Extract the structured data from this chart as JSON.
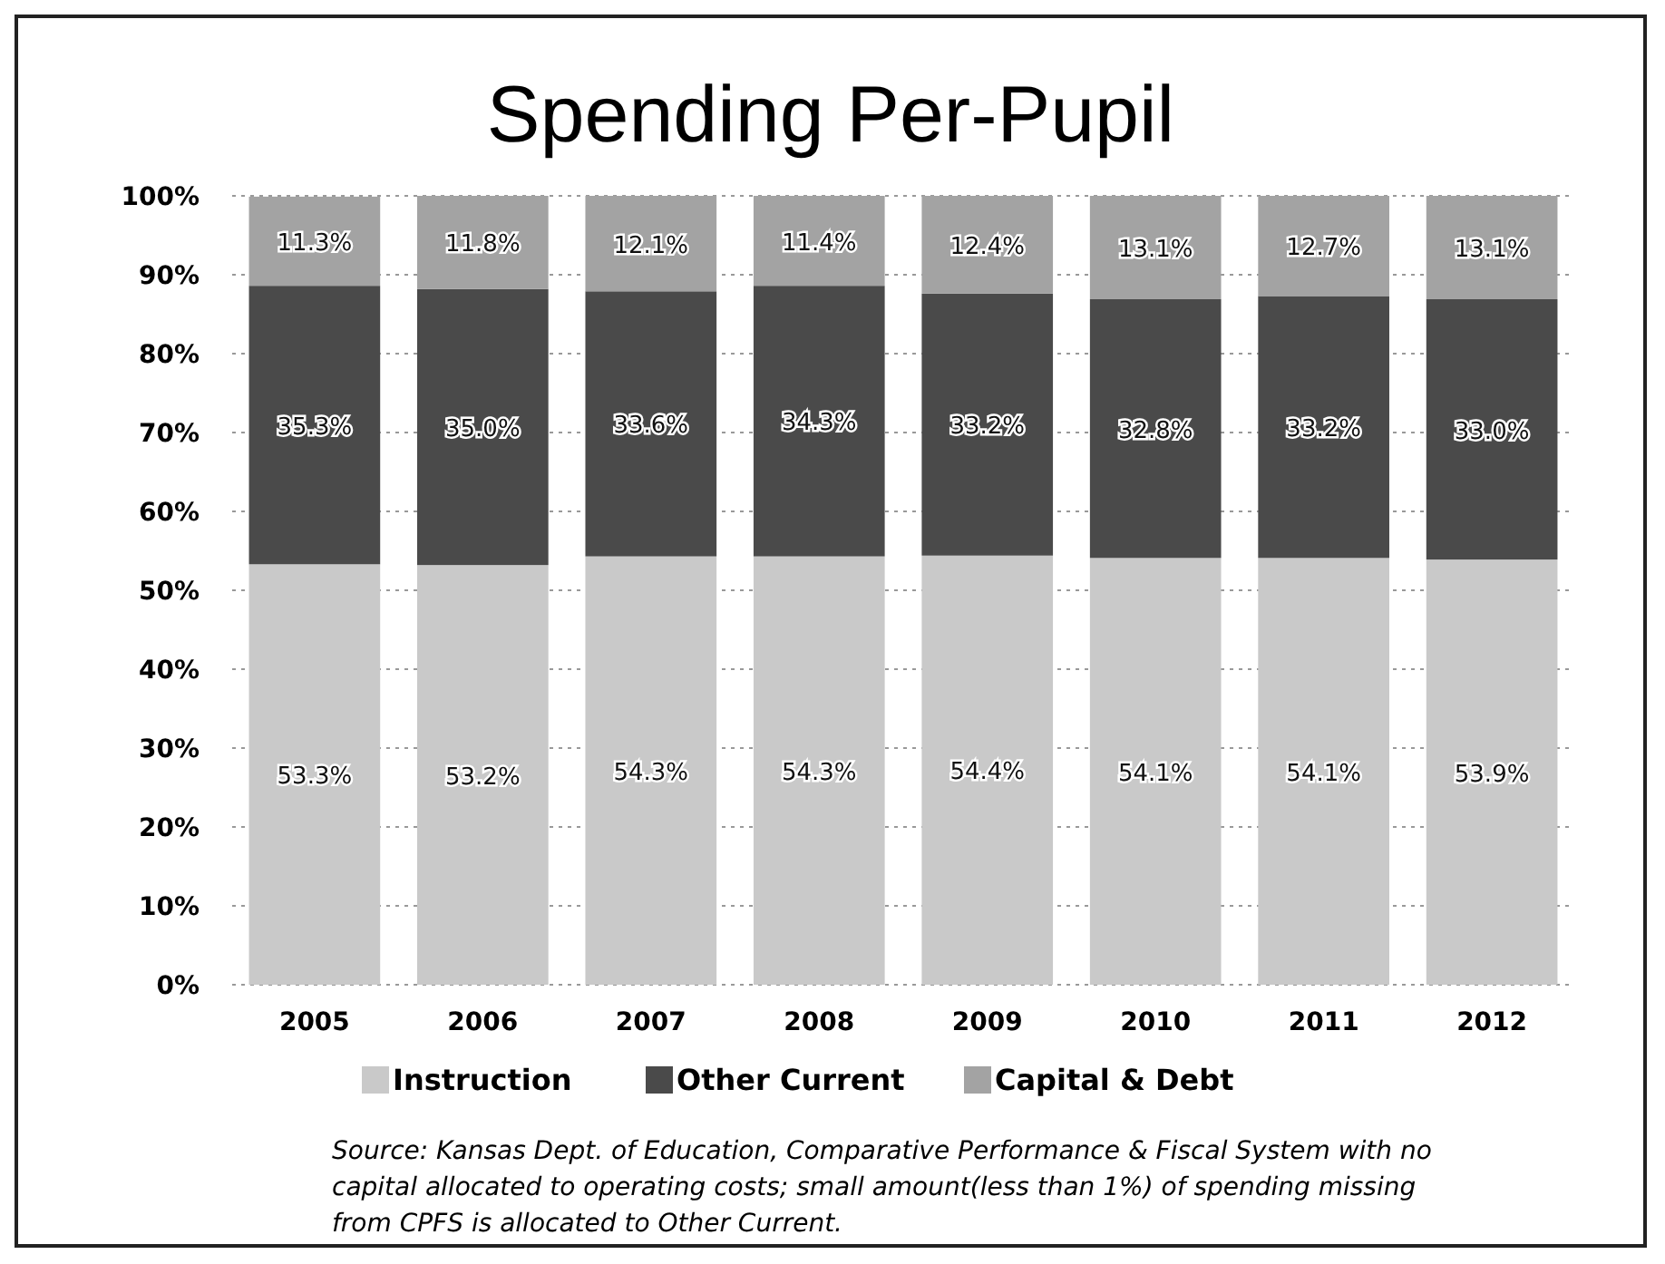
{
  "chart_data": {
    "type": "bar",
    "stacked": true,
    "title": "Spending Per-Pupil",
    "categories": [
      "2005",
      "2006",
      "2007",
      "2008",
      "2009",
      "2010",
      "2011",
      "2012"
    ],
    "series": [
      {
        "name": "Instruction",
        "color": "#c9c9c9",
        "values": [
          53.3,
          53.2,
          54.3,
          54.3,
          54.4,
          54.1,
          54.1,
          53.9
        ],
        "value_labels": [
          "53.3%",
          "53.2%",
          "54.3%",
          "54.3%",
          "54.4%",
          "54.1%",
          "54.1%",
          "53.9%"
        ]
      },
      {
        "name": "Other Current",
        "color": "#4a4a4a",
        "values": [
          35.3,
          35.0,
          33.6,
          34.3,
          33.2,
          32.8,
          33.2,
          33.0
        ],
        "value_labels": [
          "35.3%",
          "35.0%",
          "33.6%",
          "34.3%",
          "33.2%",
          "32.8%",
          "33.2%",
          "33.0%"
        ]
      },
      {
        "name": "Capital & Debt",
        "color": "#a3a3a3",
        "values": [
          11.3,
          11.8,
          12.1,
          11.4,
          12.4,
          13.1,
          12.7,
          13.1
        ],
        "value_labels": [
          "11.3%",
          "11.8%",
          "12.1%",
          "11.4%",
          "12.4%",
          "13.1%",
          "12.7%",
          "13.1%"
        ]
      }
    ],
    "ylim": [
      0,
      100
    ],
    "yticks": [
      {
        "value": 0,
        "label": "0%"
      },
      {
        "value": 10,
        "label": "10%"
      },
      {
        "value": 20,
        "label": "20%"
      },
      {
        "value": 30,
        "label": "30%"
      },
      {
        "value": 40,
        "label": "40%"
      },
      {
        "value": 50,
        "label": "50%"
      },
      {
        "value": 60,
        "label": "60%"
      },
      {
        "value": 70,
        "label": "70%"
      },
      {
        "value": 80,
        "label": "80%"
      },
      {
        "value": 90,
        "label": "90%"
      },
      {
        "value": 100,
        "label": "100%"
      }
    ],
    "grid": "y",
    "legend": "bottom",
    "annotations": [
      "Source: Kansas Dept. of Education, Comparative Performance & Fiscal System with no capital allocated to operating costs; small amount(less than 1%)  of spending missing from CPFS is allocated to Other Current."
    ]
  }
}
